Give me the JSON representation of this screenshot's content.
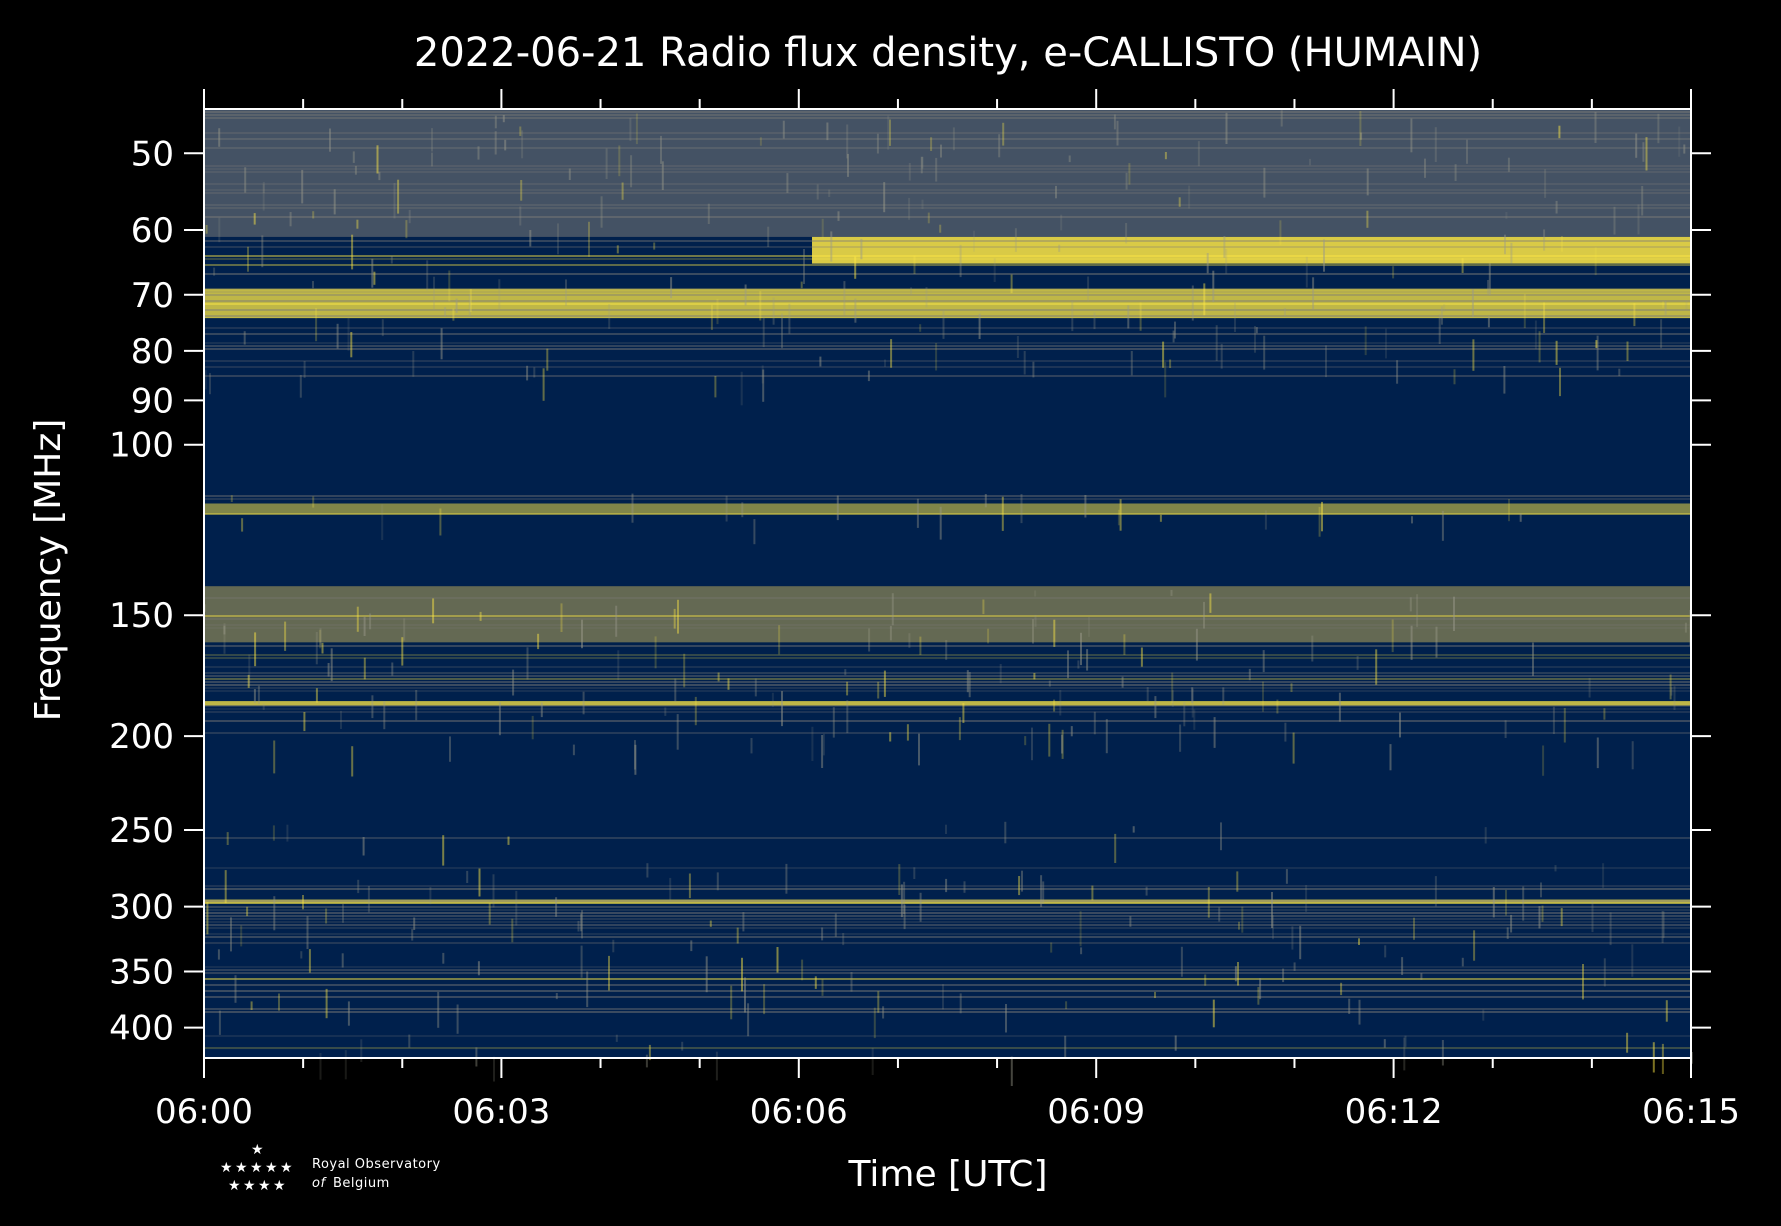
{
  "chart_data": {
    "type": "heatmap",
    "title": "2022-06-21 Radio flux density, e-CALLISTO (HUMAIN)",
    "xlabel": "Time [UTC]",
    "ylabel": "Frequency [MHz]",
    "x_ticks": [
      "06:00",
      "06:03",
      "06:06",
      "06:09",
      "06:12",
      "06:15"
    ],
    "x_range": [
      "06:00",
      "06:15"
    ],
    "y_scale": "log",
    "y_range": [
      45,
      430
    ],
    "y_ticks": [
      50,
      60,
      70,
      80,
      90,
      100,
      150,
      200,
      250,
      300,
      350,
      400
    ],
    "colormap": "cividis",
    "colors": {
      "low": "#00204c",
      "mid": "#7c7b78",
      "high": "#ffe945",
      "axis": "#ffffff",
      "background": "#000000"
    },
    "bands_mhz": [
      {
        "from": 45,
        "to": 61,
        "level": "mixed"
      },
      {
        "from": 61,
        "to": 65,
        "level": "strong-after-06:06"
      },
      {
        "from": 69,
        "to": 74,
        "level": "strong"
      },
      {
        "from": 85,
        "to": 112,
        "level": "masked"
      },
      {
        "from": 115,
        "to": 118,
        "level": "strong-bursty"
      },
      {
        "from": 120,
        "to": 140,
        "level": "masked"
      },
      {
        "from": 140,
        "to": 160,
        "level": "mixed-bright"
      },
      {
        "from": 184,
        "to": 186,
        "level": "strong-line"
      },
      {
        "from": 205,
        "to": 245,
        "level": "masked"
      },
      {
        "from": 255,
        "to": 270,
        "level": "masked"
      },
      {
        "from": 295,
        "to": 298,
        "level": "strong-line"
      },
      {
        "from": 385,
        "to": 405,
        "level": "masked"
      }
    ]
  },
  "logo": {
    "line1": "Royal Observatory",
    "line2_of": "of",
    "line2": "Belgium"
  }
}
